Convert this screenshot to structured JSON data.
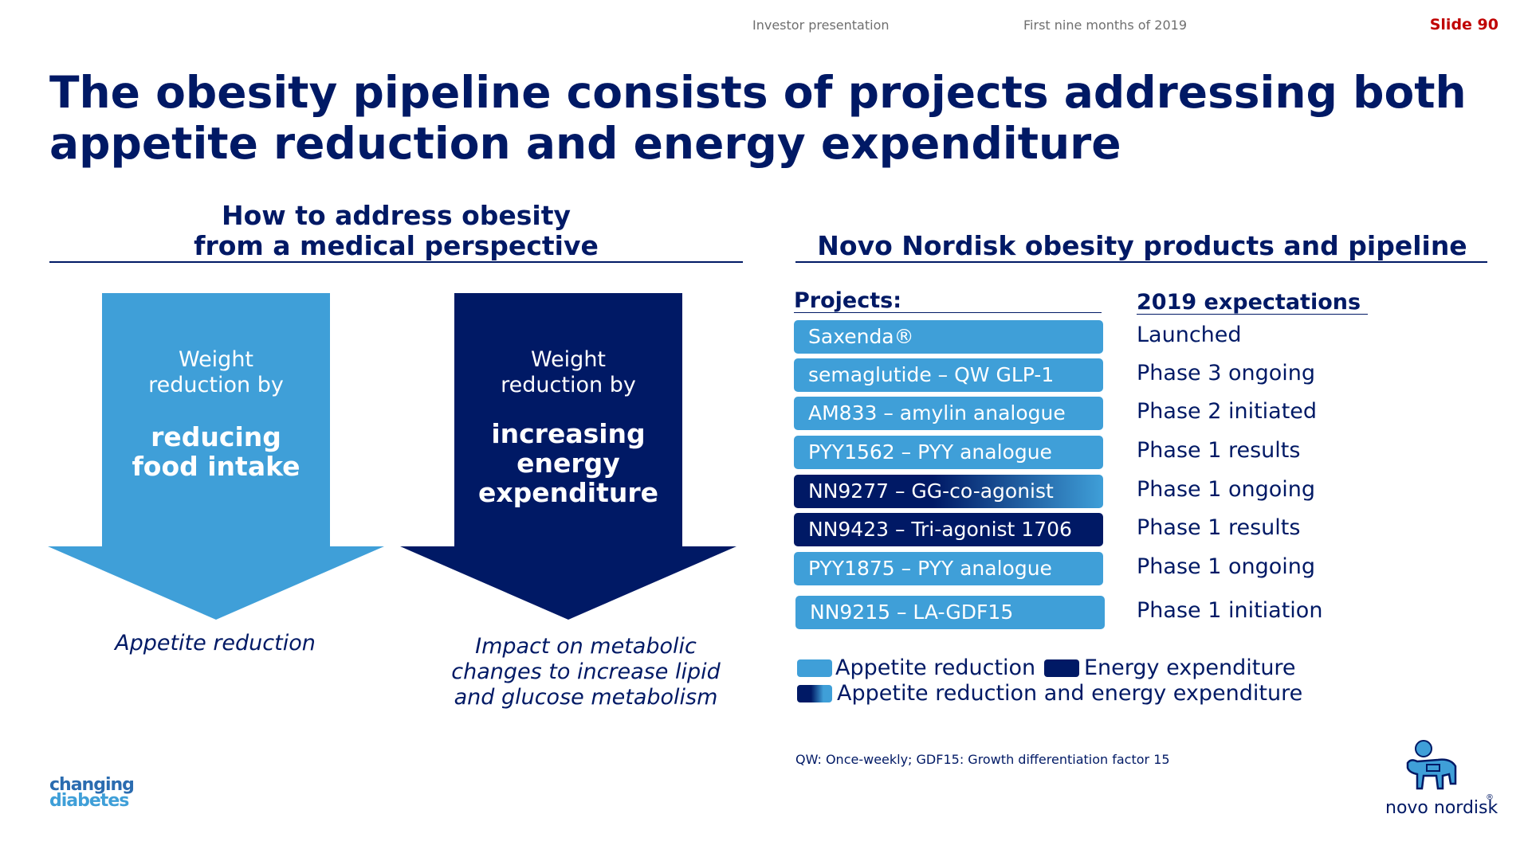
{
  "header": {
    "presentation": "Investor presentation",
    "period": "First nine months of 2019",
    "slide": "Slide 90"
  },
  "title": {
    "line1": "The obesity pipeline consists of projects addressing both",
    "line2": "appetite reduction and energy expenditure"
  },
  "left": {
    "heading_line1": "How to address obesity",
    "heading_line2": "from a medical perspective",
    "arrow1": {
      "small_line1": "Weight",
      "small_line2": "reduction by",
      "big_line1": "reducing",
      "big_line2": "food intake",
      "caption": "Appetite reduction",
      "color": "#3f9fd8"
    },
    "arrow2": {
      "small_line1": "Weight",
      "small_line2": "reduction by",
      "big_line1": "increasing",
      "big_line2": "energy",
      "big_line3": "expenditure",
      "caption_line1": "Impact on metabolic",
      "caption_line2": "changes to increase lipid",
      "caption_line3": "and glucose metabolism",
      "color": "#001965"
    }
  },
  "right": {
    "heading": "Novo Nordisk obesity products and pipeline",
    "projects_header": "Projects:",
    "expectations_header": "2019 expectations",
    "projects": [
      {
        "name": "Saxenda®",
        "expectation": "Launched",
        "type": "appetite"
      },
      {
        "name": "semaglutide – QW GLP-1",
        "expectation": "Phase 3 ongoing",
        "type": "appetite"
      },
      {
        "name": "AM833 – amylin analogue",
        "expectation": "Phase 2 initiated",
        "type": "appetite"
      },
      {
        "name": "PYY1562 – PYY analogue",
        "expectation": "Phase 1 results",
        "type": "appetite"
      },
      {
        "name": "NN9277 – GG-co-agonist",
        "expectation": "Phase 1 ongoing",
        "type": "both"
      },
      {
        "name": "NN9423 – Tri-agonist 1706",
        "expectation": "Phase 1 results",
        "type": "energy"
      },
      {
        "name": "PYY1875 – PYY analogue",
        "expectation": "Phase 1 ongoing",
        "type": "appetite"
      },
      {
        "name": "NN9215 – LA-GDF15",
        "expectation": "Phase 1 initiation",
        "type": "appetite"
      }
    ],
    "legend": {
      "appetite": "Appetite reduction",
      "energy": "Energy expenditure",
      "both": "Appetite reduction and energy expenditure"
    },
    "footnote": "QW: Once-weekly; GDF15: Growth differentiation factor 15"
  },
  "logos": {
    "changing_diabetes_line1": "changing",
    "changing_diabetes_line2": "diabetes",
    "novo_nordisk": "novo nordisk"
  },
  "colors": {
    "navy": "#001965",
    "light_blue": "#3f9fd8",
    "slide_red": "#c00000"
  }
}
